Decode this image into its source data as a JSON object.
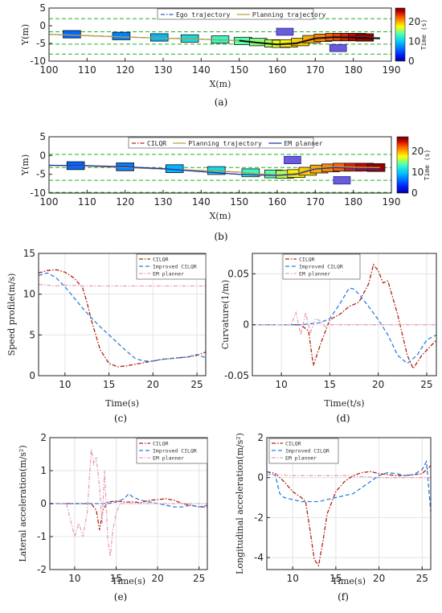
{
  "chart_data": [
    {
      "id": "a",
      "type": "line",
      "caption": "(a)",
      "xlabel": "X(m)",
      "ylabel": "Y(m)",
      "xlim": [
        100,
        190
      ],
      "ylim": [
        -10,
        5
      ],
      "xticks": [
        100,
        110,
        120,
        130,
        140,
        150,
        160,
        170,
        180,
        190
      ],
      "yticks": [
        5,
        0,
        -5,
        -10
      ],
      "colorbar": {
        "label": "Time (s)",
        "ticks": [
          20,
          10,
          0
        ],
        "range": [
          0,
          27
        ]
      },
      "legend": [
        "Ego trajectory",
        "Planning trajectory"
      ],
      "boundaries": [
        2,
        -1.7,
        -5.2,
        -8
      ],
      "series": [
        {
          "name": "Ego trajectory",
          "style": "dashdot",
          "color": "#2060c0",
          "x": [
            100,
            110,
            120,
            130,
            140,
            150,
            155,
            160,
            165,
            170,
            175,
            180,
            187
          ],
          "y": [
            -2.4,
            -2.8,
            -3.2,
            -3.5,
            -3.8,
            -4.2,
            -4.8,
            -5.2,
            -4.8,
            -3.4,
            -3.1,
            -3.2,
            -3.4
          ]
        },
        {
          "name": "Planning trajectory",
          "style": "solid",
          "color": "#b8a040",
          "x": [
            100,
            110,
            120,
            130,
            140,
            150,
            155,
            160,
            165,
            170,
            175,
            180,
            187
          ],
          "y": [
            -2.4,
            -2.8,
            -3.2,
            -3.5,
            -3.8,
            -4.2,
            -4.8,
            -5.2,
            -4.8,
            -3.4,
            -3.1,
            -3.2,
            -3.4
          ]
        },
        {
          "name": "",
          "style": "solid",
          "color": "#111111",
          "x": [
            150,
            155,
            160,
            165,
            170,
            175,
            180,
            187
          ],
          "y": [
            -4.2,
            -4.8,
            -5.3,
            -5.0,
            -3.6,
            -3.2,
            -3.3,
            -3.6
          ]
        }
      ],
      "ego_boxes": [
        {
          "x": 106,
          "y": -2.4,
          "t": 6
        },
        {
          "x": 119,
          "y": -2.9,
          "t": 7
        },
        {
          "x": 129,
          "y": -3.3,
          "t": 9
        },
        {
          "x": 137,
          "y": -3.6,
          "t": 11
        },
        {
          "x": 145,
          "y": -3.9,
          "t": 13
        },
        {
          "x": 151,
          "y": -4.3,
          "t": 14
        },
        {
          "x": 155,
          "y": -4.6,
          "t": 15
        },
        {
          "x": 159,
          "y": -5.0,
          "t": 16
        },
        {
          "x": 161,
          "y": -5.1,
          "t": 17
        },
        {
          "x": 163,
          "y": -5.0,
          "t": 18
        },
        {
          "x": 166,
          "y": -4.6,
          "t": 19
        },
        {
          "x": 169,
          "y": -3.8,
          "t": 20
        },
        {
          "x": 172,
          "y": -3.4,
          "t": 21
        },
        {
          "x": 175,
          "y": -3.2,
          "t": 22
        },
        {
          "x": 177,
          "y": -3.2,
          "t": 23
        },
        {
          "x": 179,
          "y": -3.2,
          "t": 24
        },
        {
          "x": 181,
          "y": -3.2,
          "t": 25
        },
        {
          "x": 183,
          "y": -3.3,
          "t": 26
        }
      ],
      "obstacles": [
        {
          "x": 162,
          "y": -1.7
        },
        {
          "x": 176,
          "y": -6.3
        }
      ]
    },
    {
      "id": "b",
      "type": "line",
      "caption": "(b)",
      "xlabel": "X(m)",
      "ylabel": "Y(m)",
      "xlim": [
        100,
        190
      ],
      "ylim": [
        -10,
        5
      ],
      "xticks": [
        100,
        110,
        120,
        130,
        140,
        150,
        160,
        170,
        180,
        190
      ],
      "yticks": [
        5,
        0,
        -5,
        -10
      ],
      "colorbar": {
        "label": "Time (s)",
        "ticks": [
          20,
          10,
          0
        ],
        "range": [
          0,
          27
        ]
      },
      "legend": [
        "CILQR",
        "Planning trajectory",
        "EM planner"
      ],
      "boundaries": [
        0.3,
        -3.2,
        -6.6,
        -9.8
      ],
      "series": [
        {
          "name": "CILQR",
          "style": "dashdot",
          "color": "#c02010",
          "x": [
            100,
            110,
            120,
            130,
            140,
            150,
            155,
            160,
            165,
            170,
            175,
            180,
            187
          ],
          "y": [
            -2.6,
            -2.8,
            -3.2,
            -3.6,
            -4.0,
            -4.4,
            -4.9,
            -5.2,
            -4.8,
            -3.4,
            -3.0,
            -3.1,
            -3.2
          ]
        },
        {
          "name": "Planning trajectory",
          "style": "solid",
          "color": "#b8a040",
          "x": [
            100,
            110,
            120,
            130,
            140,
            150,
            155,
            160,
            165,
            170,
            175,
            180,
            187
          ],
          "y": [
            -2.6,
            -2.8,
            -3.2,
            -3.6,
            -4.0,
            -4.4,
            -4.9,
            -5.2,
            -4.8,
            -3.4,
            -3.0,
            -3.1,
            -3.2
          ]
        },
        {
          "name": "EM planner",
          "style": "solid",
          "color": "#2030b0",
          "x": [
            100,
            110,
            120,
            130,
            140,
            150,
            155,
            160,
            165,
            170,
            175,
            180,
            187
          ],
          "y": [
            -2.6,
            -2.7,
            -3.0,
            -3.5,
            -4.3,
            -5.0,
            -5.2,
            -5.3,
            -5.0,
            -3.6,
            -3.2,
            -3.4,
            -3.8
          ]
        }
      ],
      "ego_boxes": [
        {
          "x": 107,
          "y": -2.7,
          "t": 6
        },
        {
          "x": 120,
          "y": -3.0,
          "t": 7
        },
        {
          "x": 133,
          "y": -3.5,
          "t": 9
        },
        {
          "x": 144,
          "y": -4.0,
          "t": 11
        },
        {
          "x": 153,
          "y": -4.6,
          "t": 13
        },
        {
          "x": 159,
          "y": -4.9,
          "t": 14
        },
        {
          "x": 162,
          "y": -5.0,
          "t": 16
        },
        {
          "x": 165,
          "y": -4.8,
          "t": 18
        },
        {
          "x": 168,
          "y": -4.2,
          "t": 19
        },
        {
          "x": 171,
          "y": -3.6,
          "t": 20
        },
        {
          "x": 174,
          "y": -3.3,
          "t": 21
        },
        {
          "x": 177,
          "y": -3.1,
          "t": 22
        },
        {
          "x": 180,
          "y": -3.1,
          "t": 24
        },
        {
          "x": 183,
          "y": -3.1,
          "t": 25
        },
        {
          "x": 186,
          "y": -3.2,
          "t": 26
        }
      ],
      "obstacles": [
        {
          "x": 164,
          "y": -1.2
        },
        {
          "x": 177,
          "y": -6.6
        }
      ]
    },
    {
      "id": "c",
      "type": "line",
      "caption": "(c)",
      "xlabel": "Time(s)",
      "ylabel": "Speed profile(m/s)",
      "xlim": [
        7,
        26
      ],
      "ylim": [
        0,
        15
      ],
      "xticks": [
        10,
        15,
        20,
        25
      ],
      "yticks": [
        0,
        5,
        10,
        15
      ],
      "grid": true,
      "legend": [
        "CILQR",
        "Improved CILQR",
        "EM planner"
      ],
      "series": [
        {
          "name": "CILQR",
          "style": "dashdot",
          "color": "#b02010",
          "x": [
            7,
            8,
            9,
            10,
            11,
            12,
            12.5,
            13,
            14,
            15,
            16,
            17,
            18,
            19,
            20,
            21,
            22,
            23,
            24,
            25,
            26
          ],
          "y": [
            12.6,
            12.9,
            13.0,
            12.7,
            12.0,
            10.8,
            9.0,
            6.8,
            3.2,
            1.5,
            1.1,
            1.2,
            1.4,
            1.6,
            1.8,
            2.0,
            2.1,
            2.2,
            2.3,
            2.5,
            2.9
          ]
        },
        {
          "name": "Improved CILQR",
          "style": "dashed",
          "color": "#2880e0",
          "x": [
            7,
            8,
            9,
            10,
            11,
            12,
            13,
            14,
            15,
            16,
            17,
            18,
            19,
            20,
            21,
            22,
            23,
            24,
            25,
            26
          ],
          "y": [
            12.3,
            12.6,
            12.0,
            10.9,
            9.6,
            8.3,
            7.1,
            6.0,
            5.0,
            4.0,
            3.0,
            2.1,
            1.8,
            1.8,
            2.0,
            2.1,
            2.2,
            2.3,
            2.6,
            2.2
          ]
        },
        {
          "name": "EM planner",
          "style": "dashdot",
          "color": "#e8a0b8",
          "x": [
            7,
            8,
            9,
            10,
            12,
            14,
            16,
            18,
            20,
            22,
            24,
            26
          ],
          "y": [
            11.2,
            11.1,
            11.0,
            11.1,
            11.0,
            11.0,
            11.0,
            11.0,
            11.0,
            11.0,
            11.0,
            11.0
          ]
        }
      ]
    },
    {
      "id": "d",
      "type": "line",
      "caption": "(d)",
      "xlabel": "Time(t/s)",
      "ylabel": "Curvature(1/m)",
      "xlim": [
        7,
        26
      ],
      "ylim": [
        -0.05,
        0.07
      ],
      "xticks": [
        10,
        15,
        20,
        25
      ],
      "yticks": [
        0.05,
        0,
        -0.05
      ],
      "grid": true,
      "legend": [
        "CILQR",
        "Improved CILQR",
        "EM planner"
      ],
      "series": [
        {
          "name": "CILQR",
          "style": "dashdot",
          "color": "#b02010",
          "x": [
            7,
            10,
            12,
            12.8,
            13.3,
            14,
            15,
            16,
            17,
            18,
            19,
            19.5,
            20,
            20.5,
            21,
            22,
            23,
            23.6,
            24.5,
            25.5,
            26
          ],
          "y": [
            0,
            0,
            0,
            -0.006,
            -0.04,
            -0.02,
            0.005,
            0.01,
            0.018,
            0.022,
            0.04,
            0.059,
            0.053,
            0.041,
            0.043,
            0.01,
            -0.03,
            -0.043,
            -0.03,
            -0.02,
            -0.015
          ]
        },
        {
          "name": "Improved CILQR",
          "style": "dashed",
          "color": "#2880e0",
          "x": [
            7,
            12,
            14,
            15,
            16,
            17,
            17.5,
            18,
            19,
            20,
            21,
            22,
            23,
            24,
            25,
            26
          ],
          "y": [
            0,
            0,
            0.002,
            0.006,
            0.02,
            0.036,
            0.035,
            0.03,
            0.018,
            0.005,
            -0.01,
            -0.03,
            -0.038,
            -0.03,
            -0.015,
            -0.01
          ]
        },
        {
          "name": "EM planner",
          "style": "dashdot",
          "color": "#e8a0b8",
          "x": [
            7,
            11,
            11.5,
            12,
            12.5,
            13,
            13.5,
            14,
            14.5,
            15,
            16,
            20,
            26
          ],
          "y": [
            0,
            0,
            0.012,
            -0.01,
            0.012,
            -0.008,
            0.006,
            0.004,
            -0.002,
            0,
            0,
            0,
            0
          ]
        }
      ]
    },
    {
      "id": "e",
      "type": "line",
      "caption": "(e)",
      "xlabel": "Time(s)",
      "ylabel": "Lateral acceleration(m/s²)",
      "xlim": [
        7,
        26
      ],
      "ylim": [
        -2,
        2
      ],
      "xticks": [
        10,
        15,
        20,
        25
      ],
      "yticks": [
        2,
        1,
        0,
        -1,
        -2
      ],
      "grid": true,
      "legend": [
        "CILQR",
        "Improved CILQR",
        "EM planner"
      ],
      "series": [
        {
          "name": "CILQR",
          "style": "dashdot",
          "color": "#b02010",
          "x": [
            7,
            10,
            12,
            12.6,
            13,
            13.4,
            14,
            15,
            16,
            17,
            18,
            19,
            20,
            21,
            22,
            23,
            24,
            25,
            26
          ],
          "y": [
            0,
            0,
            0,
            -0.2,
            -0.8,
            -0.2,
            0.05,
            0.08,
            0.05,
            0.05,
            0.03,
            0.1,
            0.12,
            0.15,
            0.1,
            0,
            -0.05,
            -0.1,
            -0.1
          ]
        },
        {
          "name": "Improved CILQR",
          "style": "dashed",
          "color": "#2880e0",
          "x": [
            7,
            12,
            14,
            15,
            16,
            16.5,
            17,
            18,
            19,
            20,
            21,
            22,
            23,
            24,
            25,
            26
          ],
          "y": [
            0,
            0,
            0,
            0.05,
            0.15,
            0.3,
            0.2,
            0.1,
            0.05,
            0,
            -0.05,
            -0.1,
            -0.1,
            -0.05,
            -0.1,
            -0.05
          ]
        },
        {
          "name": "EM planner",
          "style": "dashdot",
          "color": "#e8a0b8",
          "x": [
            7,
            9,
            9.5,
            10,
            10.5,
            11,
            11.5,
            12,
            12.3,
            12.6,
            13,
            13.3,
            13.6,
            14,
            14.3,
            14.6,
            15,
            15.5,
            16,
            18,
            26
          ],
          "y": [
            0,
            0,
            -0.5,
            -1.0,
            -0.6,
            -1.0,
            -0.3,
            1.65,
            1.2,
            1.4,
            0.5,
            -0.6,
            1.0,
            -1.1,
            -1.6,
            -0.8,
            -0.3,
            0,
            0,
            0,
            0
          ]
        }
      ]
    },
    {
      "id": "f",
      "type": "line",
      "caption": "(f)",
      "xlabel": "Time(s)",
      "ylabel": "Longitudinal acceleration(m/s²)",
      "xlim": [
        7,
        26
      ],
      "ylim": [
        -4.6,
        2
      ],
      "xticks": [
        10,
        15,
        20,
        25
      ],
      "yticks": [
        2,
        0,
        -2,
        -4
      ],
      "grid": true,
      "legend": [
        "CILQR",
        "Improved CILQR",
        "EM planner"
      ],
      "series": [
        {
          "name": "CILQR",
          "style": "dashdot",
          "color": "#b02010",
          "x": [
            7,
            8,
            9,
            10,
            11,
            11.5,
            12,
            12.5,
            13,
            13.5,
            14,
            15,
            16,
            17,
            18,
            19,
            20,
            21,
            22,
            23,
            24,
            25,
            26
          ],
          "y": [
            0.3,
            0.2,
            -0.2,
            -0.7,
            -1.0,
            -1.2,
            -2.6,
            -4.1,
            -4.4,
            -3.2,
            -1.8,
            -0.7,
            -0.2,
            0.1,
            0.25,
            0.3,
            0.2,
            0.15,
            0.1,
            0.1,
            0.15,
            0.2,
            0.6
          ]
        },
        {
          "name": "Improved CILQR",
          "style": "dashed",
          "color": "#2880e0",
          "x": [
            7,
            8,
            8.5,
            9,
            10,
            11,
            12,
            13,
            14,
            15,
            16,
            17,
            18,
            19,
            20,
            21,
            22,
            23,
            24,
            25,
            25.5,
            26
          ],
          "y": [
            0.3,
            0.1,
            -0.8,
            -1.0,
            -1.1,
            -1.2,
            -1.2,
            -1.2,
            -1.1,
            -1.0,
            -0.9,
            -0.8,
            -0.5,
            -0.2,
            0.1,
            0.25,
            0.2,
            0.1,
            0.15,
            0.4,
            0.8,
            -1.7
          ]
        },
        {
          "name": "EM planner",
          "style": "dashdot",
          "color": "#e8a0b8",
          "x": [
            7,
            10,
            12,
            14,
            16,
            18,
            20,
            22,
            24,
            26
          ],
          "y": [
            0.15,
            0.1,
            0.1,
            0.1,
            0.1,
            0.05,
            0,
            0,
            0,
            0
          ]
        }
      ]
    }
  ]
}
